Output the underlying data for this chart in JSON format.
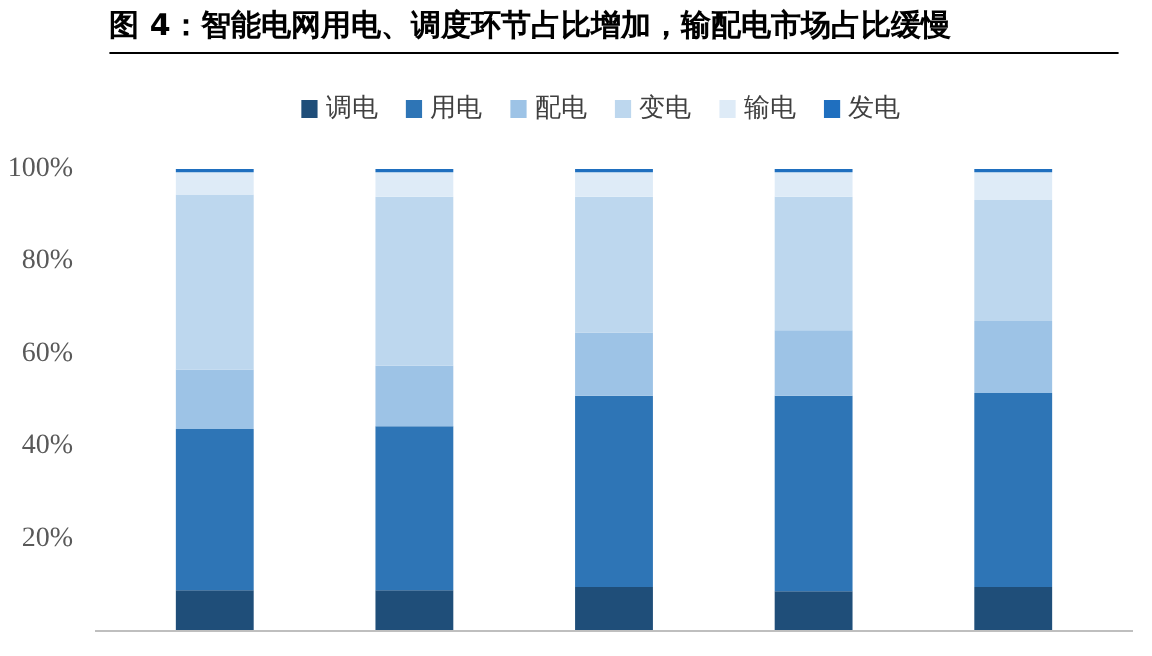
{
  "chart_data": {
    "type": "bar",
    "stacked": true,
    "title": "图 4：智能电网用电、调度环节占比增加，输配电市场占比缓慢",
    "categories": [
      null,
      null,
      null,
      null,
      null
    ],
    "series": [
      {
        "name": "调电",
        "color": "#1f4e79",
        "values": [
          8.8,
          8.8,
          9.5,
          8.6,
          9.5
        ]
      },
      {
        "name": "用电",
        "color": "#2e75b6",
        "values": [
          34.9,
          35.5,
          41.4,
          42.3,
          42.0
        ]
      },
      {
        "name": "配电",
        "color": "#9dc3e6",
        "values": [
          12.9,
          13.1,
          13.7,
          14.2,
          15.6
        ]
      },
      {
        "name": "变电",
        "color": "#bdd7ee",
        "values": [
          37.9,
          36.6,
          29.4,
          28.9,
          26.2
        ]
      },
      {
        "name": "输电",
        "color": "#deebf7",
        "values": [
          4.8,
          5.3,
          5.3,
          5.3,
          6.0
        ]
      },
      {
        "name": "发电",
        "color": "#1f6fbf",
        "values": [
          0.7,
          0.7,
          0.7,
          0.7,
          0.7
        ]
      }
    ],
    "ylim": [
      0,
      100
    ],
    "yticks": [
      {
        "value": 20,
        "label": "20%"
      },
      {
        "value": 40,
        "label": "40%"
      },
      {
        "value": 60,
        "label": "60%"
      },
      {
        "value": 80,
        "label": "80%"
      },
      {
        "value": 100,
        "label": "100%"
      }
    ],
    "grid": false,
    "legend": "top",
    "tick_labels": "y"
  }
}
